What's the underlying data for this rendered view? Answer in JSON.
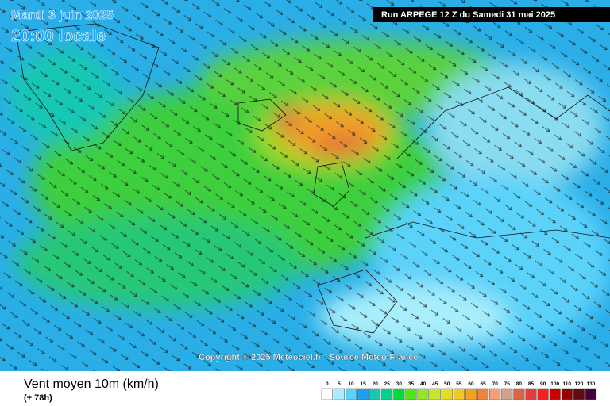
{
  "header": {
    "date": "Mardi 3 juin 2025",
    "time": "20:00 locale",
    "run": "Run ARPEGE 12 Z du Samedi 31 mai 2025"
  },
  "copyright": "Copyright © 2025 Meteociel.fr - Source Meteo-France",
  "footer": {
    "title": "Vent moyen 10m (km/h)",
    "lead": "(+ 78h)"
  },
  "legend": {
    "items": [
      {
        "value": 0,
        "color": "#ffffff"
      },
      {
        "value": 5,
        "color": "#a8eefc"
      },
      {
        "value": 10,
        "color": "#5ad2fa"
      },
      {
        "value": 15,
        "color": "#1e9ff0"
      },
      {
        "value": 20,
        "color": "#14c8b4"
      },
      {
        "value": 25,
        "color": "#00d28c"
      },
      {
        "value": 30,
        "color": "#00dc3c"
      },
      {
        "value": 35,
        "color": "#50e614"
      },
      {
        "value": 40,
        "color": "#96e628"
      },
      {
        "value": 45,
        "color": "#c8e628"
      },
      {
        "value": 50,
        "color": "#e6dc28"
      },
      {
        "value": 55,
        "color": "#f0c828"
      },
      {
        "value": 60,
        "color": "#f5a01e"
      },
      {
        "value": 65,
        "color": "#f0823c"
      },
      {
        "value": 70,
        "color": "#f5a078"
      },
      {
        "value": 75,
        "color": "#d2a08c"
      },
      {
        "value": 80,
        "color": "#dc6446"
      },
      {
        "value": 85,
        "color": "#e63c3c"
      },
      {
        "value": 90,
        "color": "#fa1e1e"
      },
      {
        "value": 100,
        "color": "#c80000"
      },
      {
        "value": 110,
        "color": "#960000"
      },
      {
        "value": 120,
        "color": "#640a14"
      },
      {
        "value": 130,
        "color": "#46003c"
      }
    ]
  }
}
